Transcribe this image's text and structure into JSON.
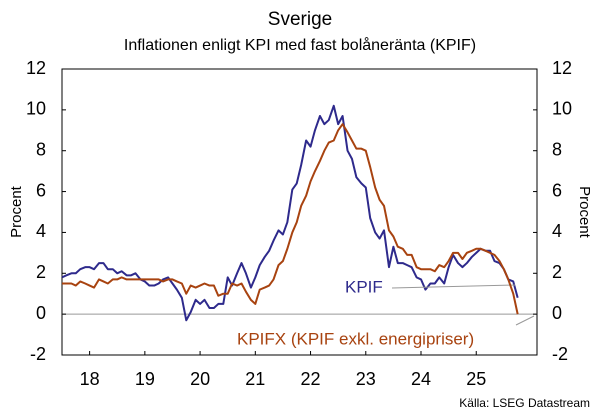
{
  "chart_data": {
    "type": "line",
    "title": "Sverige",
    "subtitle": "Inflationen enligt KPI med fast bolåneränta (KPIF)",
    "ylabel": "Procent",
    "y2label": "Procent",
    "source": "Källa: LSEG Datastream",
    "xlim": [
      2018,
      2026.6
    ],
    "xticks": [
      {
        "value": 2018.5,
        "label": "18"
      },
      {
        "value": 2019.5,
        "label": "19"
      },
      {
        "value": 2020.5,
        "label": "20"
      },
      {
        "value": 2021.5,
        "label": "21"
      },
      {
        "value": 2022.5,
        "label": "22"
      },
      {
        "value": 2023.5,
        "label": "23"
      },
      {
        "value": 2024.5,
        "label": "24"
      },
      {
        "value": 2025.5,
        "label": "25"
      }
    ],
    "ylim": [
      -2,
      12
    ],
    "yticks": [
      -2,
      0,
      2,
      4,
      6,
      8,
      10,
      12
    ],
    "y2lim": [
      -2,
      12
    ],
    "y2ticks": [
      -2,
      0,
      2,
      4,
      6,
      8,
      10,
      12
    ],
    "grid": false,
    "x": [
      2018,
      2018.08,
      2018.17,
      2018.25,
      2018.33,
      2018.42,
      2018.5,
      2018.58,
      2018.67,
      2018.75,
      2018.83,
      2018.92,
      2019,
      2019.08,
      2019.17,
      2019.25,
      2019.33,
      2019.42,
      2019.5,
      2019.58,
      2019.67,
      2019.75,
      2019.83,
      2019.92,
      2020,
      2020.08,
      2020.17,
      2020.25,
      2020.33,
      2020.42,
      2020.5,
      2020.58,
      2020.67,
      2020.75,
      2020.83,
      2020.92,
      2021,
      2021.08,
      2021.17,
      2021.25,
      2021.33,
      2021.42,
      2021.5,
      2021.58,
      2021.67,
      2021.75,
      2021.83,
      2021.92,
      2022,
      2022.08,
      2022.17,
      2022.25,
      2022.33,
      2022.42,
      2022.5,
      2022.58,
      2022.67,
      2022.75,
      2022.83,
      2022.92,
      2023,
      2023.08,
      2023.17,
      2023.25,
      2023.33,
      2023.42,
      2023.5,
      2023.58,
      2023.67,
      2023.75,
      2023.83,
      2023.92,
      2024,
      2024.08,
      2024.17,
      2024.25,
      2024.33,
      2024.42,
      2024.5,
      2024.58,
      2024.67,
      2024.75,
      2024.83,
      2024.92,
      2025,
      2025.08,
      2025.17,
      2025.25,
      2025.33,
      2025.42,
      2025.5,
      2025.58,
      2025.67,
      2025.75,
      2025.83,
      2025.92,
      2026,
      2026.08,
      2026.17,
      2026.25
    ],
    "series": [
      {
        "name": "KPIF",
        "color": "#2e2a8c",
        "values": [
          1.8,
          1.9,
          2.0,
          2.0,
          2.2,
          2.3,
          2.3,
          2.2,
          2.5,
          2.5,
          2.2,
          2.2,
          2.0,
          2.1,
          1.9,
          1.9,
          2.0,
          1.7,
          1.6,
          1.4,
          1.4,
          1.5,
          1.7,
          1.8,
          1.5,
          1.2,
          0.8,
          -0.3,
          0.1,
          0.7,
          0.5,
          0.7,
          0.3,
          0.3,
          0.5,
          0.5,
          1.8,
          1.4,
          2.0,
          2.5,
          2.0,
          1.3,
          1.8,
          2.4,
          2.8,
          3.1,
          3.6,
          4.1,
          3.9,
          4.5,
          6.1,
          6.4,
          7.3,
          8.5,
          8.2,
          9.0,
          9.7,
          9.3,
          9.5,
          10.2,
          9.3,
          9.7,
          8.0,
          7.6,
          6.7,
          6.4,
          6.2,
          4.7,
          4.0,
          3.7,
          4.1,
          2.3,
          3.3,
          2.5,
          2.5,
          2.4,
          2.3,
          1.8,
          1.7,
          1.2,
          1.5,
          1.5,
          1.8,
          1.5,
          2.3,
          2.9,
          2.5,
          2.3,
          2.5,
          2.8,
          3.0,
          3.2,
          3.1,
          3.1,
          2.6,
          2.5,
          2.2,
          1.7,
          1.6,
          0.8
        ]
      },
      {
        "name": "KPIFX (KPIF exkl. energipriser)",
        "color": "#a84310",
        "values": [
          1.5,
          1.5,
          1.5,
          1.4,
          1.6,
          1.5,
          1.4,
          1.3,
          1.7,
          1.6,
          1.5,
          1.7,
          1.7,
          1.8,
          1.7,
          1.7,
          1.7,
          1.7,
          1.7,
          1.7,
          1.7,
          1.7,
          1.6,
          1.7,
          1.7,
          1.6,
          1.5,
          1.0,
          1.4,
          1.3,
          1.4,
          1.5,
          1.4,
          1.4,
          0.9,
          1.0,
          1.0,
          1.5,
          1.4,
          1.5,
          1.1,
          0.7,
          0.5,
          1.2,
          1.3,
          1.4,
          1.7,
          2.4,
          2.6,
          3.2,
          4.0,
          4.5,
          5.3,
          5.8,
          6.5,
          7.0,
          7.5,
          8.0,
          8.4,
          8.5,
          9.0,
          9.3,
          8.9,
          8.5,
          8.1,
          8.1,
          8.0,
          7.2,
          6.2,
          5.6,
          5.3,
          4.1,
          3.8,
          3.3,
          3.2,
          2.9,
          2.9,
          2.3,
          2.2,
          2.2,
          2.2,
          2.1,
          2.4,
          2.3,
          2.6,
          3.0,
          3.0,
          2.7,
          3.0,
          3.1,
          3.2,
          3.2,
          3.1,
          3.0,
          2.9,
          2.6,
          2.2,
          1.7,
          1.0,
          0.0
        ]
      }
    ]
  }
}
